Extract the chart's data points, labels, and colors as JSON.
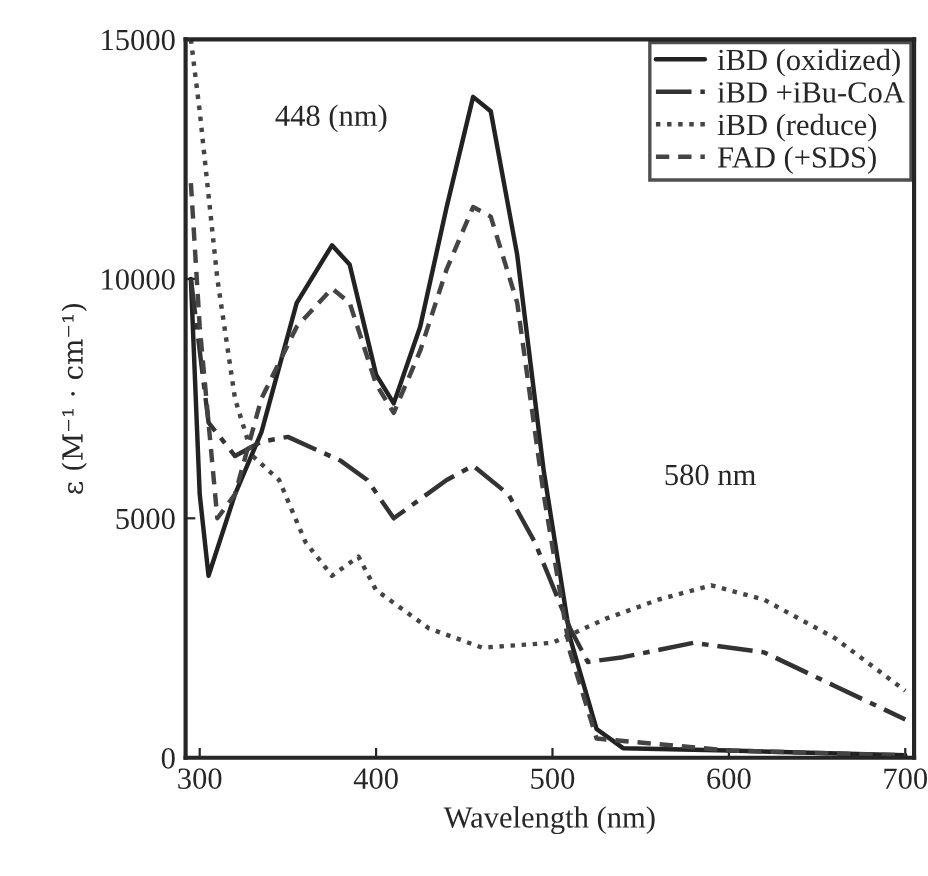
{
  "chart_data": {
    "type": "line",
    "xlabel": "Wavelength (nm)",
    "ylabel": "ε (M⁻¹ · cm⁻¹)",
    "xlim": [
      292,
      705
    ],
    "ylim": [
      0,
      15000
    ],
    "xticks": [
      300,
      400,
      500,
      600,
      700
    ],
    "yticks": [
      0,
      5000,
      10000,
      15000
    ],
    "legend": "top right",
    "grid": false,
    "annotations": [
      "448 (nm)",
      "580 nm"
    ],
    "series": [
      {
        "name": "iBD (oxidized)",
        "color": "#222222",
        "line_style": "solid",
        "x": [
          295,
          300,
          305,
          320,
          335,
          355,
          375,
          385,
          400,
          410,
          425,
          440,
          455,
          465,
          480,
          495,
          510,
          525,
          540,
          600,
          700
        ],
        "values": [
          10000,
          5500,
          3800,
          5500,
          6800,
          9500,
          10700,
          10300,
          8000,
          7400,
          9000,
          11500,
          13800,
          13500,
          10500,
          6000,
          2500,
          600,
          200,
          150,
          50
        ]
      },
      {
        "name": "iBD +iBu-CoA",
        "color": "#333333",
        "line_style": "dashdot",
        "x": [
          295,
          305,
          320,
          335,
          350,
          380,
          395,
          410,
          440,
          455,
          475,
          490,
          510,
          520,
          540,
          580,
          620,
          660,
          700
        ],
        "values": [
          10000,
          7000,
          6300,
          6600,
          6700,
          6200,
          5800,
          5000,
          5800,
          6100,
          5500,
          4500,
          2700,
          2000,
          2100,
          2400,
          2200,
          1500,
          800
        ]
      },
      {
        "name": "iBD (reduce)",
        "color": "#444444",
        "line_style": "dotted",
        "x": [
          295,
          300,
          310,
          320,
          330,
          345,
          360,
          375,
          390,
          400,
          430,
          460,
          500,
          530,
          560,
          590,
          620,
          660,
          700
        ],
        "values": [
          15000,
          13500,
          10000,
          7500,
          6300,
          5800,
          4500,
          3800,
          4200,
          3500,
          2700,
          2300,
          2400,
          2900,
          3300,
          3600,
          3300,
          2500,
          1400
        ]
      },
      {
        "name": "FAD (+SDS)",
        "color": "#444444",
        "line_style": "dashed",
        "x": [
          295,
          300,
          310,
          320,
          335,
          355,
          375,
          385,
          400,
          410,
          425,
          440,
          455,
          465,
          480,
          495,
          510,
          525,
          600,
          700
        ],
        "values": [
          12000,
          9000,
          5000,
          5500,
          7500,
          9000,
          9800,
          9500,
          7800,
          7200,
          8500,
          10200,
          11500,
          11300,
          9500,
          5500,
          2200,
          400,
          150,
          50
        ]
      }
    ]
  }
}
